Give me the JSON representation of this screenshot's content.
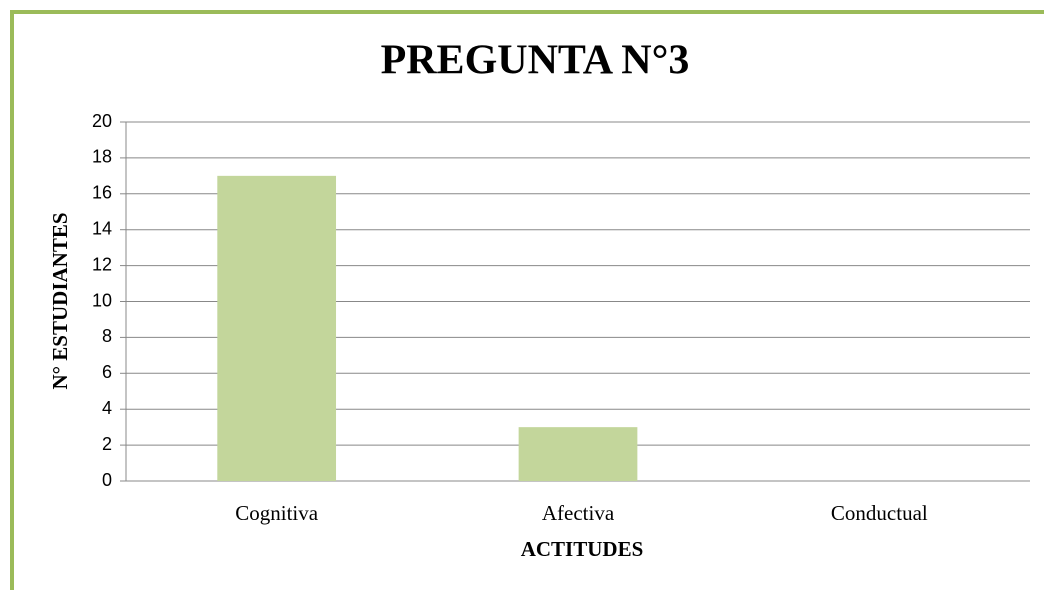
{
  "chart_data": {
    "type": "bar",
    "title": "PREGUNTA N°3",
    "categories": [
      "Cognitiva",
      "Afectiva",
      "Conductual"
    ],
    "values": [
      17,
      3,
      0
    ],
    "color": "#c3d69b",
    "x_label": "ACTITUDES",
    "y_label": "N° ESTUDIANTES",
    "ylim": [
      0,
      20
    ],
    "yticks": [
      0,
      2,
      4,
      6,
      8,
      10,
      12,
      14,
      16,
      18,
      20
    ],
    "grid": true
  }
}
